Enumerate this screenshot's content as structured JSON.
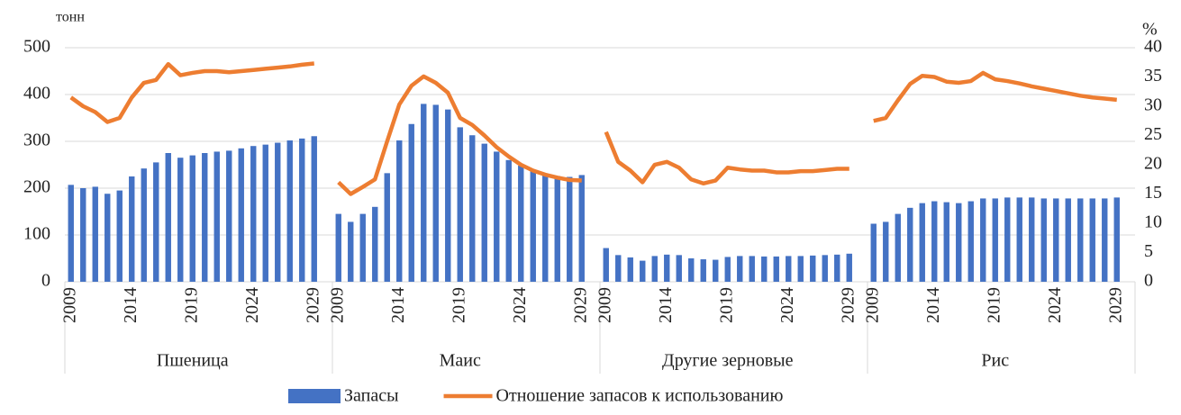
{
  "chart_data": {
    "type": "bar_line",
    "y_label": "тонн",
    "y2_label": "%",
    "groups": [
      "Пшеница",
      "Маис",
      "Другие зерновые",
      "Рис"
    ],
    "categories": [
      "2009",
      null,
      null,
      null,
      null,
      "2014",
      null,
      null,
      null,
      null,
      "2019",
      null,
      null,
      null,
      null,
      "2024",
      null,
      null,
      null,
      null,
      "2029",
      "2009",
      null,
      null,
      null,
      null,
      "2014",
      null,
      null,
      null,
      null,
      "2019",
      null,
      null,
      null,
      null,
      "2024",
      null,
      null,
      null,
      null,
      "2029",
      "2009",
      null,
      null,
      null,
      null,
      "2014",
      null,
      null,
      null,
      null,
      "2019",
      null,
      null,
      null,
      null,
      "2024",
      null,
      null,
      null,
      null,
      "2029",
      "2009",
      null,
      null,
      null,
      null,
      "2014",
      null,
      null,
      null,
      null,
      "2019",
      null,
      null,
      null,
      null,
      "2024",
      null,
      null,
      null,
      null,
      "2029"
    ],
    "series": [
      {
        "name": "Запасы",
        "type": "bar",
        "color": "#4472c4",
        "values": [
          207,
          200,
          203,
          188,
          195,
          225,
          242,
          255,
          275,
          265,
          270,
          275,
          278,
          280,
          285,
          290,
          293,
          297,
          302,
          306,
          311,
          145,
          128,
          145,
          160,
          232,
          302,
          337,
          380,
          378,
          368,
          330,
          313,
          295,
          278,
          260,
          248,
          238,
          230,
          226,
          224,
          228,
          72,
          57,
          52,
          45,
          55,
          58,
          57,
          50,
          48,
          47,
          53,
          55,
          55,
          54,
          54,
          55,
          55,
          56,
          57,
          58,
          60,
          124,
          128,
          145,
          158,
          168,
          172,
          170,
          168,
          172,
          178,
          178,
          180,
          180,
          180,
          178,
          178,
          178,
          178,
          178,
          178,
          180
        ]
      },
      {
        "name": "Отношение запасов к использованию",
        "type": "line",
        "axis": "y2",
        "color": "#ed7d31",
        "values": [
          31.5,
          30,
          29,
          27.3,
          28,
          31.5,
          34,
          34.5,
          37.2,
          35.3,
          35.7,
          36,
          36,
          35.8,
          36,
          36.2,
          36.4,
          36.6,
          36.8,
          37.1,
          37.3,
          17,
          15,
          16.2,
          17.5,
          24,
          30.3,
          33.5,
          35.1,
          34,
          32.3,
          28,
          26.8,
          25,
          23,
          21.4,
          20,
          19,
          18.3,
          17.8,
          17.4,
          17.3,
          25.6,
          20.5,
          19,
          17,
          20,
          20.5,
          19.5,
          17.5,
          16.8,
          17.3,
          19.5,
          19.2,
          19,
          19,
          18.7,
          18.7,
          18.9,
          18.9,
          19.1,
          19.3,
          19.3,
          27.5,
          28,
          31,
          33.8,
          35.2,
          35,
          34.2,
          34,
          34.3,
          35.7,
          34.6,
          34.3,
          33.9,
          33.4,
          33,
          32.6,
          32.2,
          31.8,
          31.5,
          31.3,
          31.1
        ]
      }
    ],
    "ylim": [
      0,
      500
    ],
    "yticks": [
      0,
      100,
      200,
      300,
      400,
      500
    ],
    "y2lim": [
      0,
      40
    ],
    "y2ticks": [
      0,
      5,
      10,
      15,
      20,
      25,
      30,
      35,
      40
    ],
    "grid": true,
    "legend": "bottom"
  }
}
